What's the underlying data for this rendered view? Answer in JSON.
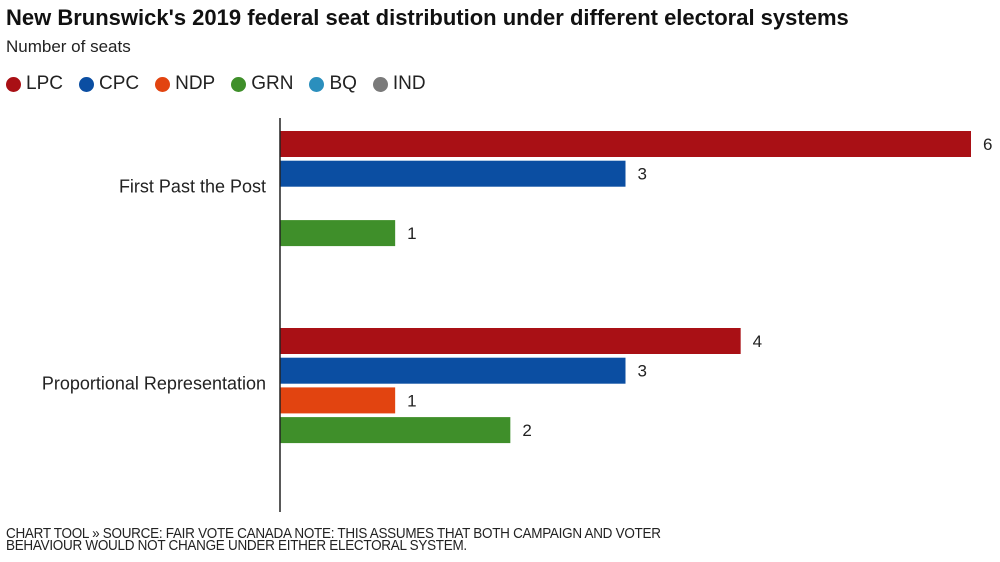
{
  "chart_data": {
    "type": "bar",
    "orientation": "horizontal",
    "title": "New Brunswick's 2019 federal seat distribution under different electoral systems",
    "subtitle": "Number of seats",
    "xlabel": "",
    "ylabel": "",
    "xlim": [
      0,
      6
    ],
    "grid": false,
    "legend_position": "top-left",
    "categories": [
      "First Past the Post",
      "Proportional Representation"
    ],
    "series": [
      {
        "name": "LPC",
        "color": "#a91015",
        "values": [
          6,
          4
        ]
      },
      {
        "name": "CPC",
        "color": "#0b4ea2",
        "values": [
          3,
          3
        ]
      },
      {
        "name": "NDP",
        "color": "#e24410",
        "values": [
          0,
          1
        ]
      },
      {
        "name": "GRN",
        "color": "#3f8f2a",
        "values": [
          1,
          2
        ]
      },
      {
        "name": "BQ",
        "color": "#2b8fbd",
        "values": [
          0,
          0
        ]
      },
      {
        "name": "IND",
        "color": "#7a7a7a",
        "values": [
          0,
          0
        ]
      }
    ]
  },
  "footer": {
    "line1": "CHART TOOL » SOURCE: FAIR VOTE CANADA NOTE: THIS ASSUMES THAT BOTH CAMPAIGN AND VOTER",
    "line2": "BEHAVIOUR WOULD NOT CHANGE UNDER EITHER ELECTORAL SYSTEM."
  }
}
